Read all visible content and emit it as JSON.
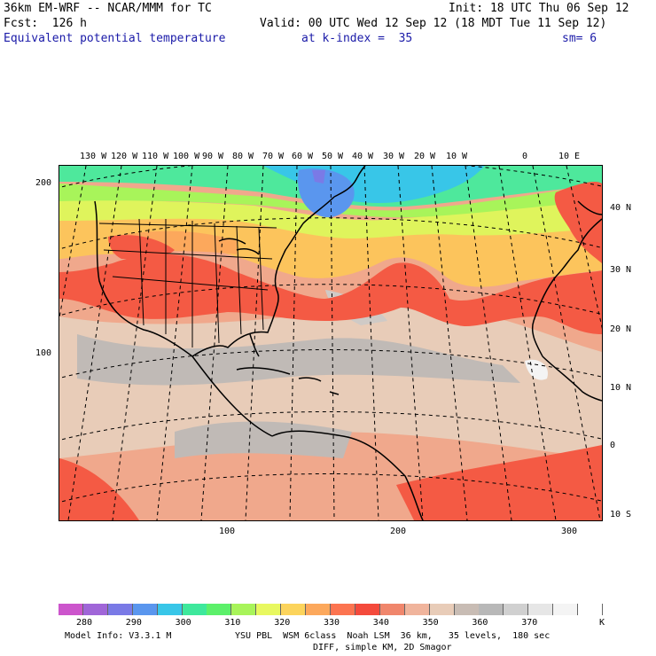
{
  "header": {
    "model": "36km EM-WRF -- NCAR/MMM for TC",
    "init": "Init: 18 UTC Thu 06 Sep 12",
    "fcst": "Fcst:  126 h",
    "valid": "Valid: 00 UTC Wed 12 Sep 12 (18 MDT Tue 11 Sep 12)",
    "field": "Equivalent potential temperature",
    "level": "at k-index =  35",
    "smooth": "sm= 6"
  },
  "top_lon_labels": [
    "130 W",
    "120 W",
    "110 W",
    "100 W",
    "90 W",
    "80 W",
    "70 W",
    "60 W",
    "50 W",
    "40 W",
    "30 W",
    "20 W",
    "10 W",
    "0",
    "10 E"
  ],
  "right_lat_labels": [
    "40 N",
    "30 N",
    "20 N",
    "10 N",
    "0",
    "10 S"
  ],
  "left_grid_labels": [
    "200",
    "100"
  ],
  "bottom_grid_labels": [
    "100",
    "200",
    "300"
  ],
  "colorbar": {
    "labels": [
      "280",
      "290",
      "300",
      "310",
      "320",
      "330",
      "340",
      "350",
      "360",
      "370"
    ],
    "unit": "K",
    "colors": [
      "#cc55cc",
      "#a066d8",
      "#7a7ae6",
      "#5a96ee",
      "#38c6e8",
      "#3ee89c",
      "#5cf06a",
      "#a8f45a",
      "#e8f860",
      "#fcd45c",
      "#fca85c",
      "#fc7450",
      "#f44a3c",
      "#f0866c",
      "#f0b49c",
      "#e8ccb8",
      "#c8bcb4",
      "#b8b8b8",
      "#d0d0d0",
      "#e6e6e6",
      "#f4f4f4",
      "#ffffff"
    ]
  },
  "footer": {
    "model_info": "Model Info: V3.3.1 M",
    "physics": "YSU PBL  WSM 6class  Noah LSM  36 km,   35 levels,  180 sec",
    "diff": "DIFF, simple KM, 2D Smagor"
  },
  "field_colors": {
    "cold": "#5a96ee",
    "cool": "#38c6e8",
    "mild": "#5cf06a",
    "lime": "#a8f45a",
    "yellow": "#e8f860",
    "gold": "#fcd45c",
    "orange": "#fca85c",
    "red": "#f44a3c",
    "salmon": "#f0866c",
    "peach": "#f0b49c",
    "tan": "#e8ccb8",
    "gray": "#b8b8b8",
    "light": "#e6e6e6"
  }
}
